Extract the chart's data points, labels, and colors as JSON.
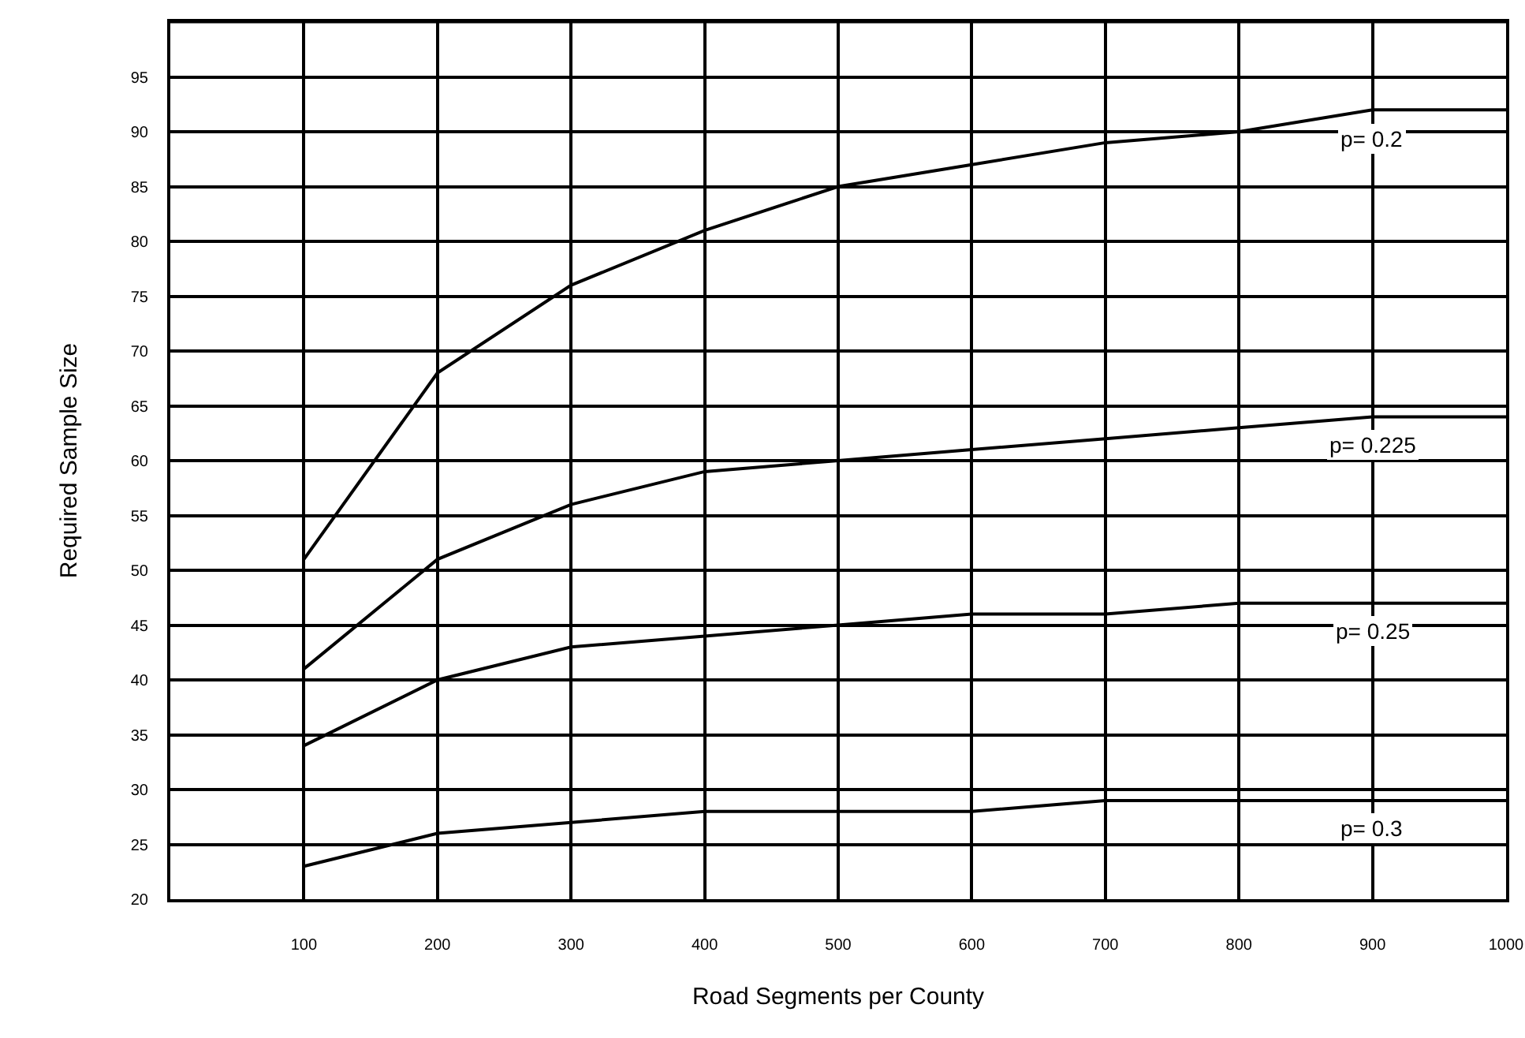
{
  "chart_data": {
    "type": "line",
    "xlabel": "Road Segments per County",
    "ylabel": "Required Sample Size",
    "x": [
      100,
      200,
      300,
      400,
      500,
      600,
      700,
      800,
      900,
      1000
    ],
    "series": [
      {
        "name": "p= 0.2",
        "color": "#000000",
        "values": [
          51,
          68,
          76,
          81,
          85,
          87,
          89,
          90,
          92,
          92
        ]
      },
      {
        "name": "p= 0.225",
        "color": "#000000",
        "values": [
          41,
          51,
          56,
          59,
          60,
          61,
          62,
          63,
          64,
          64
        ]
      },
      {
        "name": "p= 0.25",
        "color": "#000000",
        "values": [
          34,
          40,
          43,
          44,
          45,
          46,
          46,
          47,
          47,
          47
        ]
      },
      {
        "name": "p= 0.3",
        "color": "#000000",
        "values": [
          23,
          26,
          27,
          28,
          28,
          28,
          29,
          29,
          29,
          29
        ]
      }
    ],
    "xlim": [
      0,
      1000
    ],
    "xticks": [
      100,
      200,
      300,
      400,
      500,
      600,
      700,
      800,
      900,
      1000
    ],
    "ylim": [
      20,
      100
    ],
    "yticks": [
      20,
      25,
      30,
      35,
      40,
      45,
      50,
      55,
      60,
      65,
      70,
      75,
      80,
      85,
      90,
      95
    ],
    "grid": true,
    "marker": "none",
    "line_style": "solid"
  }
}
